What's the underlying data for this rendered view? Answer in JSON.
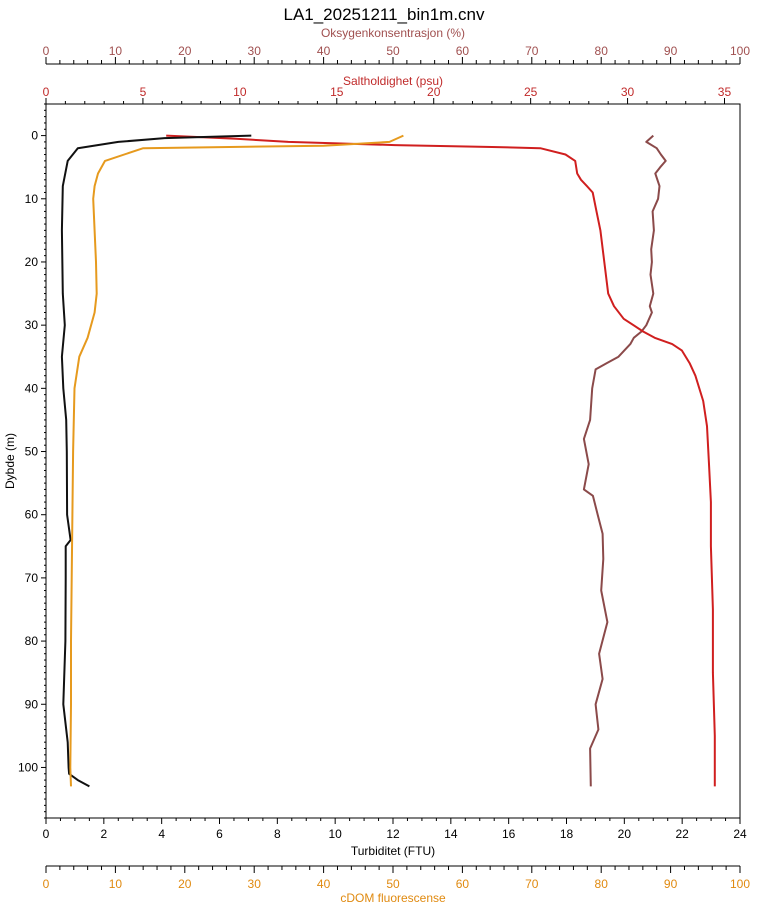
{
  "chart_data": {
    "type": "line",
    "title": "LA1_20251211_bin1m.cnv",
    "colors": {
      "oxygen": "#8b4a4a",
      "salinity": "#d01f1f",
      "turbidity": "#111111",
      "cdom": "#e69a1e",
      "oxygen_axis": "#a05050",
      "salinity_axis": "#c02a2a",
      "cdom_axis": "#e08a10",
      "plot_border": "#000000"
    },
    "axes": {
      "y": {
        "label": "Dybde (m)",
        "range": [
          108,
          -5
        ],
        "inverted": true,
        "ticks": [
          0,
          10,
          20,
          30,
          40,
          50,
          60,
          70,
          80,
          90,
          100
        ]
      },
      "x_top_oxygen": {
        "label": "Oksygenkonsentrasjon (%)",
        "range": [
          0,
          100
        ],
        "ticks": [
          0,
          10,
          20,
          30,
          40,
          50,
          60,
          70,
          80,
          90,
          100
        ]
      },
      "x_top_salinity": {
        "label": "Saltholdighet (psu)",
        "range": [
          0,
          35.8
        ],
        "ticks": [
          0,
          5,
          10,
          15,
          20,
          25,
          30,
          35
        ]
      },
      "x_bottom_turbidity": {
        "label": "Turbiditet (FTU)",
        "range": [
          0,
          24
        ],
        "ticks": [
          0,
          2,
          4,
          6,
          8,
          10,
          12,
          14,
          16,
          18,
          20,
          22,
          24
        ]
      },
      "x_bottom_cdom": {
        "label": "cDOM fluorescense",
        "range": [
          0,
          100
        ],
        "ticks": [
          0,
          10,
          20,
          30,
          40,
          50,
          60,
          70,
          80,
          90,
          100
        ]
      }
    },
    "series": [
      {
        "name": "Oksygenkonsentrasjon (%)",
        "axis": "x_top_oxygen",
        "points": [
          [
            87.5,
            0
          ],
          [
            86.5,
            1
          ],
          [
            88,
            2
          ],
          [
            88.6,
            3
          ],
          [
            89.3,
            4
          ],
          [
            88.5,
            5
          ],
          [
            87.8,
            6
          ],
          [
            88.4,
            8
          ],
          [
            88.2,
            10
          ],
          [
            87.4,
            12
          ],
          [
            87.6,
            15
          ],
          [
            87.2,
            18
          ],
          [
            87.3,
            20
          ],
          [
            87.1,
            22
          ],
          [
            87.5,
            25
          ],
          [
            87,
            27
          ],
          [
            87.3,
            28
          ],
          [
            86.5,
            30
          ],
          [
            85.8,
            31
          ],
          [
            84.7,
            32
          ],
          [
            84.2,
            33
          ],
          [
            82.5,
            35
          ],
          [
            80.8,
            36
          ],
          [
            79.2,
            37
          ],
          [
            78.7,
            40
          ],
          [
            78.4,
            45
          ],
          [
            77.5,
            48
          ],
          [
            78.2,
            52
          ],
          [
            77.5,
            56
          ],
          [
            78.8,
            57
          ],
          [
            79.5,
            60
          ],
          [
            80.2,
            63
          ],
          [
            80.3,
            67
          ],
          [
            80,
            72
          ],
          [
            80.9,
            77
          ],
          [
            79.7,
            82
          ],
          [
            80.2,
            86
          ],
          [
            79.2,
            90
          ],
          [
            79.6,
            94
          ],
          [
            78.4,
            97
          ],
          [
            78.5,
            103
          ]
        ]
      },
      {
        "name": "Saltholdighet (psu)",
        "axis": "x_top_salinity",
        "points": [
          [
            6.2,
            0
          ],
          [
            9.8,
            0.5
          ],
          [
            12.5,
            1
          ],
          [
            18,
            1.5
          ],
          [
            23,
            1.8
          ],
          [
            25.5,
            2
          ],
          [
            26.8,
            3
          ],
          [
            27.3,
            4
          ],
          [
            27.4,
            6
          ],
          [
            27.6,
            7
          ],
          [
            27.9,
            8
          ],
          [
            28.2,
            9
          ],
          [
            28.4,
            12
          ],
          [
            28.6,
            15
          ],
          [
            28.8,
            20
          ],
          [
            29,
            25
          ],
          [
            29.3,
            27
          ],
          [
            29.8,
            29
          ],
          [
            30.8,
            31
          ],
          [
            31.4,
            32
          ],
          [
            32.3,
            33
          ],
          [
            32.8,
            34
          ],
          [
            33.2,
            36
          ],
          [
            33.5,
            38
          ],
          [
            33.9,
            42
          ],
          [
            34.1,
            46
          ],
          [
            34.2,
            52
          ],
          [
            34.3,
            58
          ],
          [
            34.3,
            65
          ],
          [
            34.4,
            75
          ],
          [
            34.4,
            85
          ],
          [
            34.5,
            95
          ],
          [
            34.5,
            103
          ]
        ]
      },
      {
        "name": "Turbiditet (FTU)",
        "axis": "x_bottom_turbidity",
        "points": [
          [
            7.1,
            0
          ],
          [
            4.1,
            0.4
          ],
          [
            2.5,
            1
          ],
          [
            1.1,
            2
          ],
          [
            0.75,
            4
          ],
          [
            0.58,
            8
          ],
          [
            0.55,
            15
          ],
          [
            0.58,
            25
          ],
          [
            0.65,
            30
          ],
          [
            0.55,
            35
          ],
          [
            0.6,
            40
          ],
          [
            0.7,
            45
          ],
          [
            0.72,
            50
          ],
          [
            0.73,
            60
          ],
          [
            0.85,
            64
          ],
          [
            0.68,
            65
          ],
          [
            0.68,
            70
          ],
          [
            0.67,
            80
          ],
          [
            0.6,
            90
          ],
          [
            0.75,
            96
          ],
          [
            0.78,
            100
          ],
          [
            0.8,
            101
          ],
          [
            1.1,
            102
          ],
          [
            1.5,
            103
          ]
        ]
      },
      {
        "name": "cDOM fluorescense",
        "axis": "x_bottom_cdom",
        "points": [
          [
            51.5,
            0
          ],
          [
            49.5,
            1
          ],
          [
            40,
            1.6
          ],
          [
            14,
            2
          ],
          [
            8.5,
            4
          ],
          [
            7.5,
            6
          ],
          [
            7,
            8
          ],
          [
            6.8,
            10
          ],
          [
            7,
            15
          ],
          [
            7.2,
            20
          ],
          [
            7.3,
            25
          ],
          [
            7,
            28
          ],
          [
            6,
            32
          ],
          [
            4.8,
            35
          ],
          [
            4.1,
            40
          ],
          [
            3.9,
            50
          ],
          [
            3.8,
            60
          ],
          [
            3.7,
            70
          ],
          [
            3.6,
            80
          ],
          [
            3.6,
            90
          ],
          [
            3.5,
            100
          ],
          [
            3.6,
            103
          ]
        ]
      }
    ]
  }
}
